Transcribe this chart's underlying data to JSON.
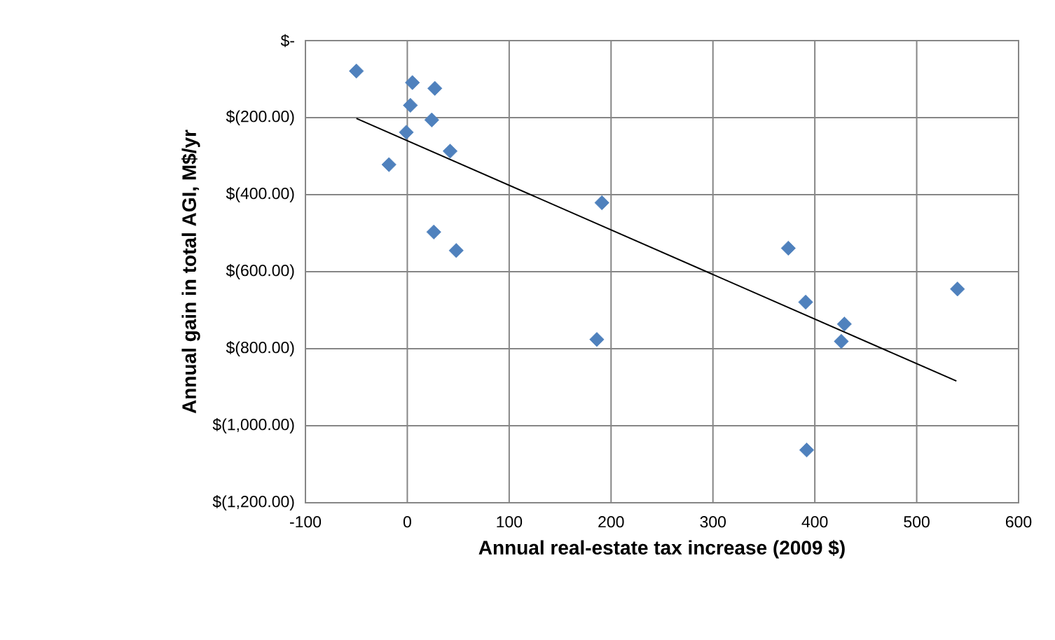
{
  "chart_data": {
    "type": "scatter",
    "xlabel": "Annual real-estate tax increase (2009 $)",
    "ylabel": "Annual gain in total AGI, M$/yr",
    "xlim": [
      -100,
      600
    ],
    "xticks": [
      -100,
      0,
      100,
      200,
      300,
      400,
      500,
      600
    ],
    "ylim": [
      -1200,
      0
    ],
    "yticks": [
      {
        "value": 0,
        "label": "$-"
      },
      {
        "value": -200,
        "label": "$(200.00)"
      },
      {
        "value": -400,
        "label": "$(400.00)"
      },
      {
        "value": -600,
        "label": "$(600.00)"
      },
      {
        "value": -800,
        "label": "$(800.00)"
      },
      {
        "value": -1000,
        "label": "$(1,000.00)"
      },
      {
        "value": -1200,
        "label": "$(1,200.00)"
      }
    ],
    "grid": true,
    "series": [
      {
        "marker": "diamond",
        "color": "#4f81bd",
        "x": [
          -50,
          5,
          27,
          3,
          24,
          -1,
          42,
          -18,
          26,
          48,
          191,
          186,
          374,
          391,
          429,
          426,
          392,
          540
        ],
        "values": [
          -79,
          -109,
          -124,
          -168,
          -206,
          -238,
          -287,
          -322,
          -497,
          -545,
          -421,
          -776,
          -539,
          -679,
          -736,
          -781,
          -1063,
          -645
        ]
      },
      {
        "type": "line",
        "marker": "none",
        "color": "#000000",
        "x": [
          -50,
          539
        ],
        "values": [
          -202,
          -884
        ]
      }
    ]
  }
}
